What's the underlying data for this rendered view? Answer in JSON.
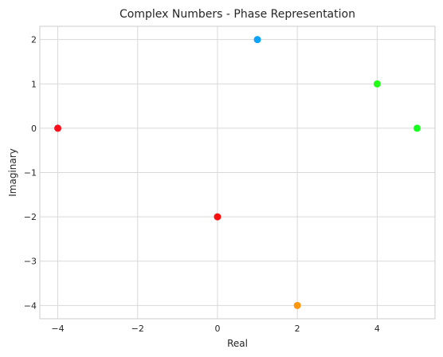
{
  "chart_data": {
    "type": "scatter",
    "title": "Complex Numbers - Phase Representation",
    "xlabel": "Real",
    "ylabel": "Imaginary",
    "xlim": [
      -4.45,
      5.45
    ],
    "ylim": [
      -4.3,
      2.3
    ],
    "grid": true,
    "x_ticks": [
      -4,
      -2,
      0,
      2,
      4
    ],
    "x_tick_labels": [
      "−4",
      "−2",
      "0",
      "2",
      "4"
    ],
    "y_ticks": [
      -4,
      -3,
      -2,
      -1,
      0,
      1,
      2
    ],
    "y_tick_labels": [
      "−4",
      "−3",
      "−2",
      "−1",
      "0",
      "1",
      "2"
    ],
    "points": [
      {
        "x": 1,
        "y": 2,
        "color": "#0da3ff"
      },
      {
        "x": 4,
        "y": 1,
        "color": "#21ff17"
      },
      {
        "x": 5,
        "y": 0,
        "color": "#17ff21"
      },
      {
        "x": -4,
        "y": 0,
        "color": "#ff0d1a"
      },
      {
        "x": 0,
        "y": -2,
        "color": "#ff0d0d"
      },
      {
        "x": 2,
        "y": -4,
        "color": "#ff960d"
      }
    ]
  }
}
